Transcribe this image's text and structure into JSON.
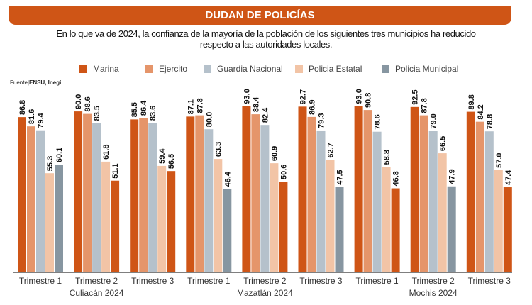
{
  "title": "DUDAN DE POLICÍAS",
  "subtitle_line1": "En lo que va de 2024, la confianza de la mayoría de la población de los siguientes tres municipios ha reducido",
  "subtitle_line2": "respecto a las autoridades locales.",
  "source_label": "Fuente|",
  "source_value": "ENSU, Inegi",
  "chart_data": {
    "type": "bar",
    "categories": [
      "Trimestre 1",
      "Trimestre 2",
      "Trimestre 3",
      "Trimestre 1",
      "Trimestre 2",
      "Trimestre 3",
      "Trimestre 1",
      "Trimestre 2",
      "Trimestre 3"
    ],
    "group_labels": [
      "Culiacán 2024",
      "Mazatlán 2024",
      "Mochis 2024"
    ],
    "series": [
      {
        "name": "Marina",
        "color": "#cf5516",
        "values": [
          86.8,
          90.0,
          85.5,
          87.1,
          93.0,
          92.7,
          93.0,
          92.5,
          89.8
        ]
      },
      {
        "name": "Ejercito",
        "color": "#e5956a",
        "values": [
          81.6,
          88.6,
          86.4,
          87.8,
          88.4,
          86.9,
          90.8,
          87.8,
          84.2
        ]
      },
      {
        "name": "Guardia Nacional",
        "color": "#b5c1cb",
        "values": [
          79.4,
          83.5,
          83.6,
          80.0,
          82.4,
          79.3,
          78.6,
          79.0,
          78.8
        ]
      },
      {
        "name": "Policia Estatal",
        "color": "#f2c4a6",
        "values": [
          55.3,
          61.8,
          59.4,
          63.3,
          60.9,
          62.7,
          58.8,
          66.5,
          57.0
        ]
      },
      {
        "name": "Policia Municipal",
        "color": "#8796a1",
        "values": [
          60.1,
          51.1,
          56.5,
          46.4,
          50.6,
          47.5,
          46.8,
          47.9,
          47.4
        ]
      }
    ],
    "municipal_bar_colors": [
      "#8796a1",
      "#cf5516",
      "#cf5516",
      "#8796a1",
      "#cf5516",
      "#8796a1",
      "#cf5516",
      "#8796a1",
      "#cf5516"
    ],
    "ylim": [
      0,
      100
    ],
    "grid": false,
    "legend": "top"
  }
}
